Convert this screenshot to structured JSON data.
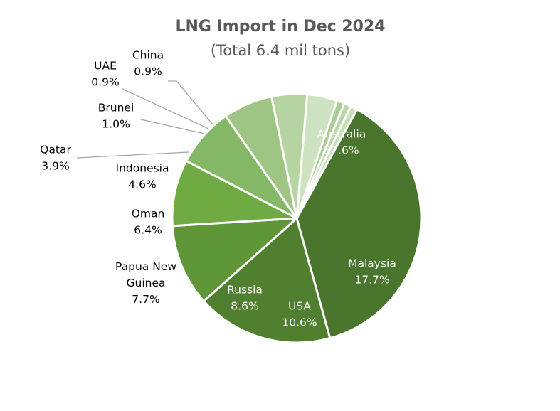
{
  "chart_data": {
    "type": "pie",
    "title": "LNG Import in Dec 2024",
    "subtitle": "(Total 6.4 mil tons)",
    "categories": [
      "Australia",
      "Malaysia",
      "USA",
      "Russia",
      "Papua New Guinea",
      "Oman",
      "Indonesia",
      "Qatar",
      "Brunei",
      "UAE",
      "China"
    ],
    "values": [
      37.6,
      17.7,
      10.6,
      8.6,
      7.7,
      6.4,
      4.6,
      3.9,
      1.0,
      0.9,
      0.9
    ],
    "value_labels": [
      "37.6%",
      "17.7%",
      "10.6%",
      "8.6%",
      "7.7%",
      "6.4%",
      "4.6%",
      "3.9%",
      "1.0%",
      "0.9%",
      "0.9%"
    ],
    "colors": [
      "#4a752c",
      "#507f30",
      "#5f9637",
      "#6fab42",
      "#85b866",
      "#9fc585",
      "#b6d3a2",
      "#cde2c0",
      "#a9cd94",
      "#b8d6a6",
      "#c7dfb8"
    ]
  }
}
